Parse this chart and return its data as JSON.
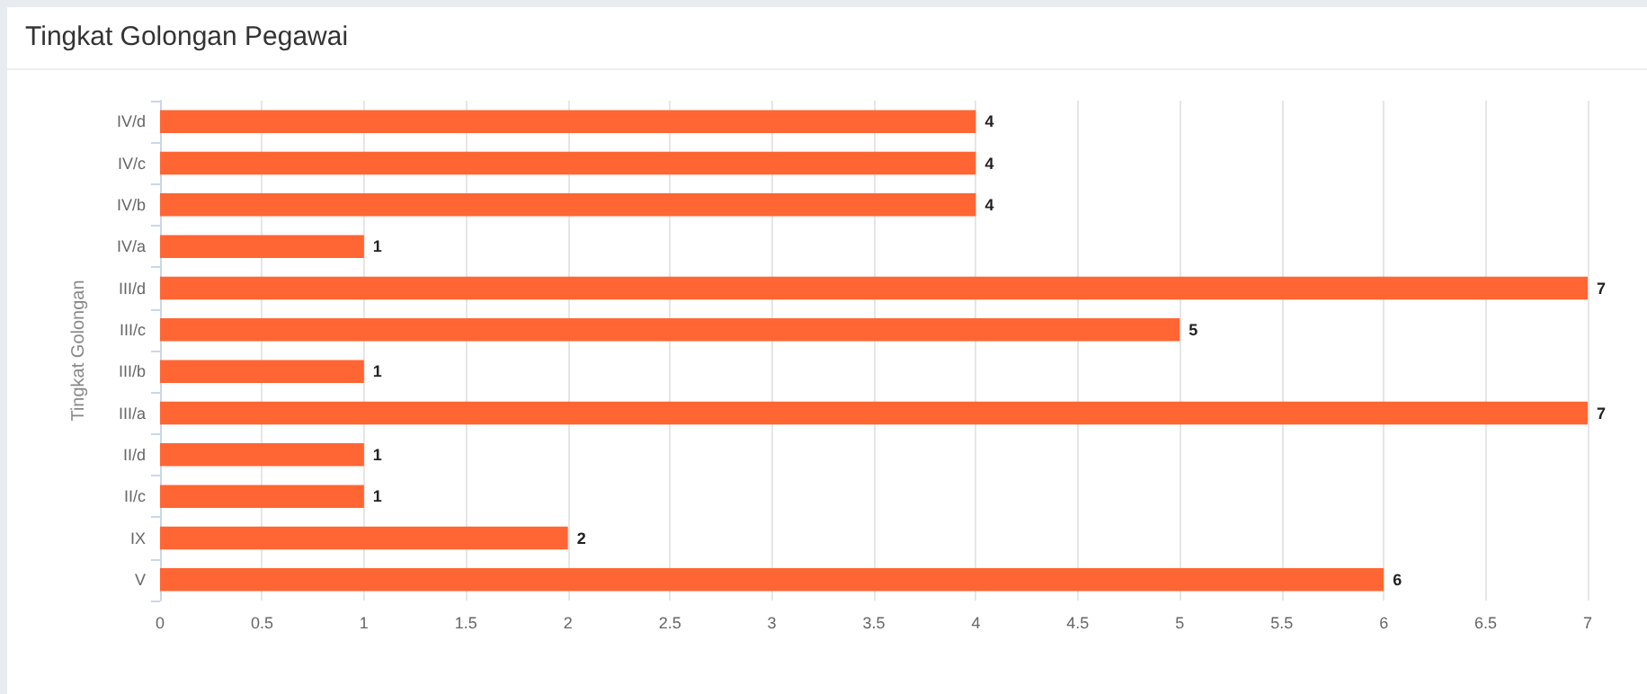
{
  "chart_data": {
    "type": "bar",
    "orientation": "horizontal",
    "title": "Tingkat Golongan Pegawai",
    "ylabel": "Tingkat Golongan",
    "categories": [
      "IV/d",
      "IV/c",
      "IV/b",
      "IV/a",
      "III/d",
      "III/c",
      "III/b",
      "III/a",
      "II/d",
      "II/c",
      "IX",
      "V"
    ],
    "values": [
      4,
      4,
      4,
      1,
      7,
      5,
      1,
      7,
      1,
      1,
      2,
      6
    ],
    "color": "#ff6633",
    "xlim": [
      0,
      7
    ],
    "xticks": [
      0,
      0.5,
      1,
      1.5,
      2,
      2.5,
      3,
      3.5,
      4,
      4.5,
      5,
      5.5,
      6,
      6.5,
      7
    ],
    "grid": "x",
    "data_labels": true
  }
}
